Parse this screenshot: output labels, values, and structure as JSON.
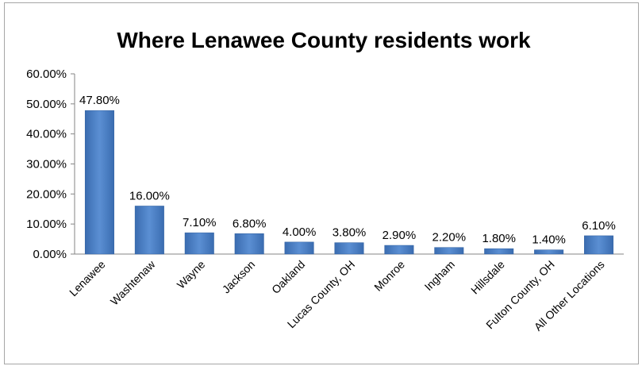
{
  "chart_data": {
    "type": "bar",
    "title": "Where Lenawee County residents work",
    "xlabel": "",
    "ylabel": "",
    "categories": [
      "Lenawee",
      "Washtenaw",
      "Wayne",
      "Jackson",
      "Oakland",
      "Lucas County, OH",
      "Monroe",
      "Ingham",
      "Hillsdale",
      "Fulton County, OH",
      "All Other Locations"
    ],
    "values": [
      47.8,
      16.0,
      7.1,
      6.8,
      4.0,
      3.8,
      2.9,
      2.2,
      1.8,
      1.4,
      6.1
    ],
    "data_labels": [
      "47.80%",
      "16.00%",
      "7.10%",
      "6.80%",
      "4.00%",
      "3.80%",
      "2.90%",
      "2.20%",
      "1.80%",
      "1.40%",
      "6.10%"
    ],
    "ylim": [
      0,
      60
    ],
    "yticks": [
      0,
      10,
      20,
      30,
      40,
      50,
      60
    ],
    "ytick_labels": [
      "0.00%",
      "10.00%",
      "20.00%",
      "30.00%",
      "40.00%",
      "50.00%",
      "60.00%"
    ],
    "grid": false,
    "legend": "none",
    "bar_color": "#4a7ebb",
    "bar_color_dark": "#3060a0"
  }
}
